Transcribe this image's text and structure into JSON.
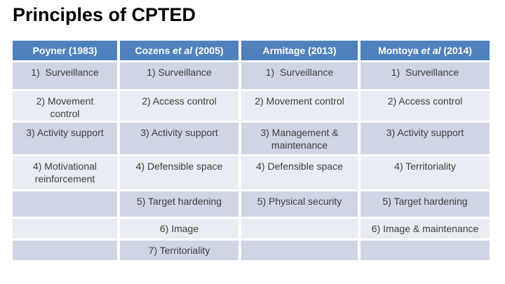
{
  "title": "Principles of CPTED",
  "colors": {
    "header_bg": "#4f81bd",
    "header_text": "#ffffff",
    "band_dark": "#cfd5e3",
    "band_light": "#e9ecf3",
    "body_text": "#3d3d3d",
    "title_text": "#000000"
  },
  "table": {
    "headers": [
      {
        "pre": "Poyner (1983)",
        "italic": "",
        "post": ""
      },
      {
        "pre": "Cozens ",
        "italic": "et al",
        "post": " (2005)"
      },
      {
        "pre": "Armitage (2013)",
        "italic": "",
        "post": ""
      },
      {
        "pre": "Montoya ",
        "italic": "et al",
        "post": " (2014)"
      }
    ],
    "rows": [
      {
        "cells": [
          "1)  Surveillance",
          "1) Surveillance",
          "1)  Surveillance",
          "1)  Surveillance"
        ]
      },
      {
        "cells": [
          "2) Movement\ncontrol",
          "2) Access control",
          "2) Movement control",
          "2) Access control"
        ]
      },
      {
        "cells": [
          "3) Activity support",
          "3) Activity support",
          "3) Management &\nmaintenance",
          "3) Activity support"
        ]
      },
      {
        "cells": [
          "4) Motivational\nreinforcement",
          "4) Defensible space",
          "4) Defensible space",
          "4) Territoriality"
        ]
      },
      {
        "cells": [
          "",
          "5) Target hardening",
          "5) Physical security",
          "5) Target hardening"
        ]
      },
      {
        "cells": [
          "",
          "6) Image",
          "",
          "6) Image & maintenance"
        ]
      },
      {
        "cells": [
          "",
          "7) Territoriality",
          "",
          ""
        ]
      }
    ]
  }
}
